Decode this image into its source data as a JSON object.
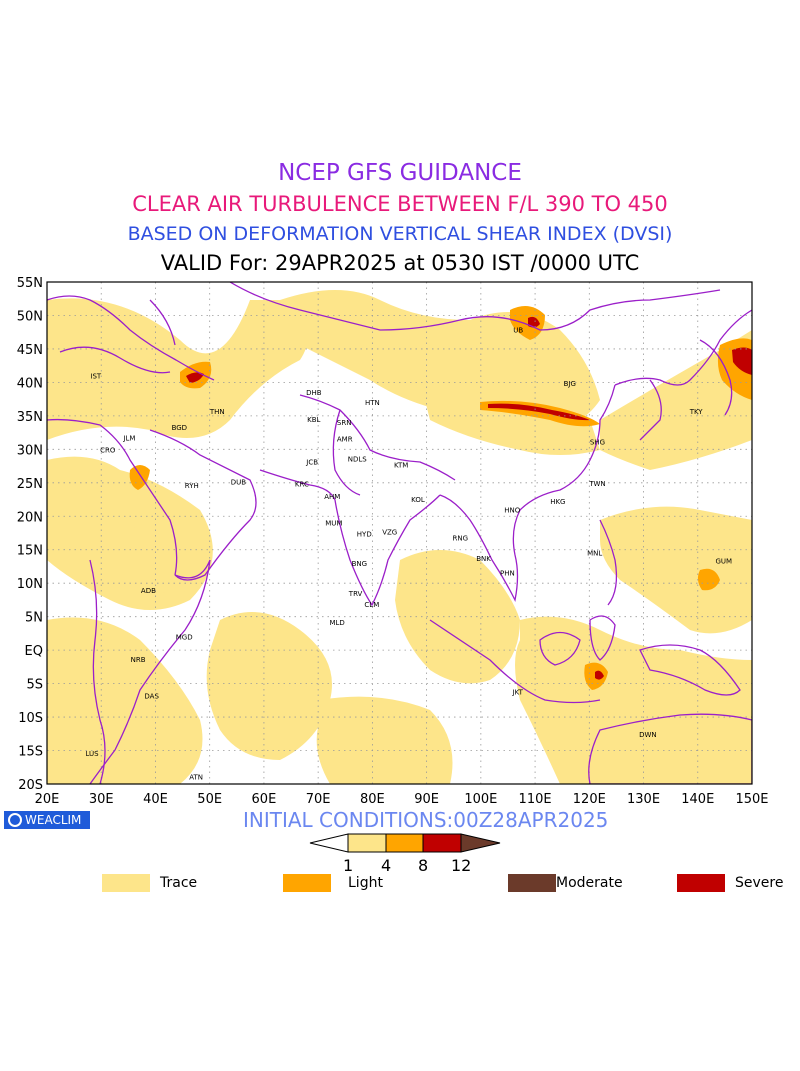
{
  "titles": {
    "line1": "NCEP GFS GUIDANCE",
    "line2": "CLEAR AIR TURBULENCE BETWEEN F/L 390 TO 450",
    "line3": "BASED ON DEFORMATION VERTICAL SHEAR INDEX (DVSI)",
    "line4": "VALID For: 29APR2025 at 0530 IST /0000 UTC"
  },
  "colors": {
    "title1": "#8a2be2",
    "title2": "#e8197a",
    "title3": "#2f4fe0",
    "trace": "#fde58a",
    "light": "#ffa500",
    "moderate": "#6b3a2a",
    "severe": "#c00000",
    "boundary": "#9b1fc9",
    "grid": "#9a9a9a"
  },
  "map": {
    "lat_labels": [
      "55N",
      "50N",
      "45N",
      "40N",
      "35N",
      "30N",
      "25N",
      "20N",
      "15N",
      "10N",
      "5N",
      "EQ",
      "5S",
      "10S",
      "15S",
      "20S"
    ],
    "lon_labels": [
      "20E",
      "30E",
      "40E",
      "50E",
      "60E",
      "70E",
      "80E",
      "90E",
      "100E",
      "110E",
      "120E",
      "130E",
      "140E",
      "150E"
    ],
    "cities": [
      {
        "name": "IST",
        "lon": 29,
        "lat": 41
      },
      {
        "name": "BGD",
        "lon": 44.4,
        "lat": 33.3
      },
      {
        "name": "THN",
        "lon": 51.4,
        "lat": 35.7
      },
      {
        "name": "DHB",
        "lon": 69.2,
        "lat": 38.6
      },
      {
        "name": "HTN",
        "lon": 80,
        "lat": 37.1
      },
      {
        "name": "KBL",
        "lon": 69.2,
        "lat": 34.5
      },
      {
        "name": "SRN",
        "lon": 74.8,
        "lat": 34.1
      },
      {
        "name": "CRO",
        "lon": 31.2,
        "lat": 30
      },
      {
        "name": "JLM",
        "lon": 35.2,
        "lat": 31.8
      },
      {
        "name": "AMR",
        "lon": 74.9,
        "lat": 31.6
      },
      {
        "name": "JCB",
        "lon": 68.9,
        "lat": 28.2
      },
      {
        "name": "NDLS",
        "lon": 77.2,
        "lat": 28.6
      },
      {
        "name": "KTM",
        "lon": 85.3,
        "lat": 27.7
      },
      {
        "name": "RYH",
        "lon": 46.7,
        "lat": 24.7
      },
      {
        "name": "DUB",
        "lon": 55.3,
        "lat": 25.2
      },
      {
        "name": "KRC",
        "lon": 67,
        "lat": 24.9
      },
      {
        "name": "AHM",
        "lon": 72.6,
        "lat": 23
      },
      {
        "name": "KOL",
        "lon": 88.4,
        "lat": 22.6
      },
      {
        "name": "MUM",
        "lon": 72.9,
        "lat": 19.1
      },
      {
        "name": "HYD",
        "lon": 78.5,
        "lat": 17.4
      },
      {
        "name": "VZG",
        "lon": 83.2,
        "lat": 17.7
      },
      {
        "name": "RNG",
        "lon": 96.2,
        "lat": 16.8
      },
      {
        "name": "BNK",
        "lon": 100.5,
        "lat": 13.8
      },
      {
        "name": "PHN",
        "lon": 104.9,
        "lat": 11.6
      },
      {
        "name": "HNO",
        "lon": 105.8,
        "lat": 21
      },
      {
        "name": "HKG",
        "lon": 114.2,
        "lat": 22.3
      },
      {
        "name": "TWN",
        "lon": 121.5,
        "lat": 25
      },
      {
        "name": "SHG",
        "lon": 121.5,
        "lat": 31.2
      },
      {
        "name": "BJG",
        "lon": 116.4,
        "lat": 39.9
      },
      {
        "name": "UB",
        "lon": 106.9,
        "lat": 47.9
      },
      {
        "name": "TKY",
        "lon": 139.7,
        "lat": 35.7
      },
      {
        "name": "MNL",
        "lon": 121,
        "lat": 14.6
      },
      {
        "name": "GUM",
        "lon": 144.8,
        "lat": 13.4
      },
      {
        "name": "BNG",
        "lon": 77.6,
        "lat": 13
      },
      {
        "name": "TRV",
        "lon": 76.9,
        "lat": 8.5
      },
      {
        "name": "CLM",
        "lon": 79.9,
        "lat": 6.9
      },
      {
        "name": "MLD",
        "lon": 73.5,
        "lat": 4.2
      },
      {
        "name": "ADB",
        "lon": 38.7,
        "lat": 9
      },
      {
        "name": "MGD",
        "lon": 45.3,
        "lat": 2
      },
      {
        "name": "NRB",
        "lon": 36.8,
        "lat": -1.3
      },
      {
        "name": "DAS",
        "lon": 39.3,
        "lat": -6.8
      },
      {
        "name": "LUS",
        "lon": 28.3,
        "lat": -15.4
      },
      {
        "name": "ATN",
        "lon": 47.5,
        "lat": -18.9
      },
      {
        "name": "JKT",
        "lon": 106.8,
        "lat": -6.2
      },
      {
        "name": "DWN",
        "lon": 130.8,
        "lat": -12.5
      }
    ]
  },
  "watermark": "WEACLIM",
  "initial_conditions": "INITIAL CONDITIONS:00Z28APR2025",
  "colorbar": {
    "ticks": [
      "1",
      "4",
      "8",
      "12"
    ]
  },
  "legend": [
    {
      "label": "Trace",
      "key": "trace"
    },
    {
      "label": "Light",
      "key": "light"
    },
    {
      "label": "Moderate",
      "key": "moderate"
    },
    {
      "label": "Severe",
      "key": "severe"
    }
  ]
}
